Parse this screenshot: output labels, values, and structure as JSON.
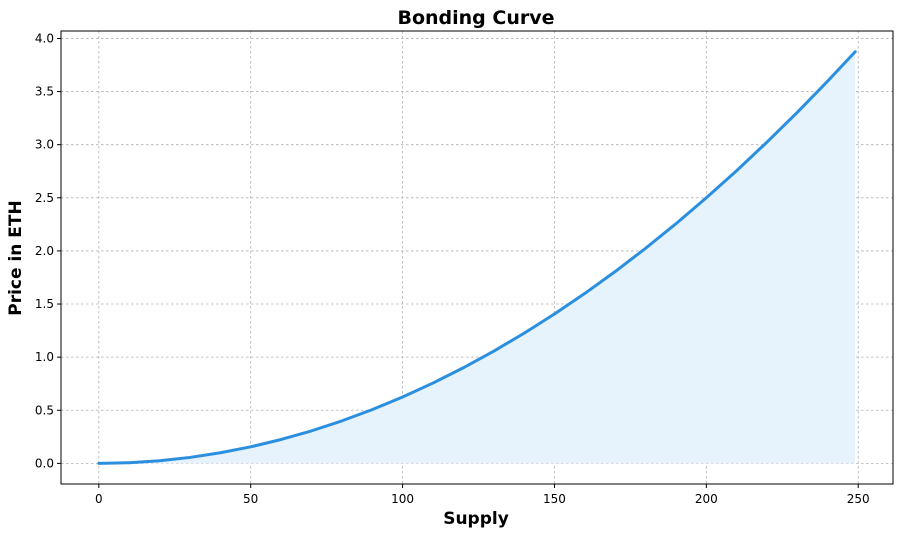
{
  "chart_data": {
    "type": "area",
    "title": "Bonding Curve",
    "xlabel": "Supply",
    "ylabel": "Price in ETH",
    "xlim": [
      -12.45,
      261.45
    ],
    "ylim": [
      -0.194,
      4.07
    ],
    "grid": true,
    "x_ticks": [
      0,
      50,
      100,
      150,
      200,
      250
    ],
    "y_ticks": [
      0.0,
      0.5,
      1.0,
      1.5,
      2.0,
      2.5,
      3.0,
      3.5,
      4.0
    ],
    "x_tick_labels": [
      "0",
      "50",
      "100",
      "150",
      "200",
      "250"
    ],
    "y_tick_labels": [
      "0.0",
      "0.5",
      "1.0",
      "1.5",
      "2.0",
      "2.5",
      "3.0",
      "3.5",
      "4.0"
    ],
    "series": [
      {
        "color": "#2b8fe0",
        "fill_color": "#e6f2fc",
        "x": [
          0,
          10,
          20,
          30,
          40,
          50,
          60,
          70,
          80,
          90,
          100,
          110,
          120,
          130,
          140,
          150,
          160,
          170,
          180,
          190,
          200,
          210,
          220,
          230,
          240,
          249
        ],
        "y": [
          0.0,
          0.0063,
          0.025,
          0.056,
          0.1,
          0.156,
          0.225,
          0.306,
          0.4,
          0.506,
          0.625,
          0.756,
          0.9,
          1.056,
          1.225,
          1.406,
          1.6,
          1.806,
          2.025,
          2.256,
          2.5,
          2.756,
          3.025,
          3.306,
          3.6,
          3.875
        ]
      }
    ]
  }
}
